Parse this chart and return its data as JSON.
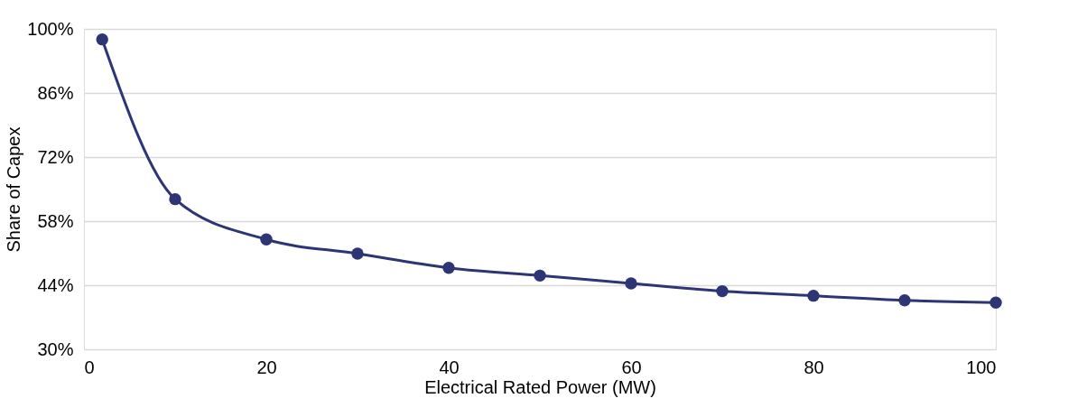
{
  "chart_data": {
    "type": "line",
    "xlabel": "Electrical Rated Power (MW)",
    "ylabel": "Share of Capex",
    "x": [
      2,
      10,
      20,
      30,
      40,
      50,
      60,
      70,
      80,
      90,
      100
    ],
    "series": [
      {
        "color": "#2e3575",
        "values": [
          97.7,
          62.8,
          54.0,
          50.9,
          47.8,
          46.1,
          44.4,
          42.7,
          41.7,
          40.7,
          40.2
        ]
      }
    ],
    "xlim": [
      0,
      100
    ],
    "xticks": [
      0,
      20,
      40,
      60,
      80,
      100
    ],
    "ylim": [
      30,
      100
    ],
    "yticks": [
      {
        "value": 30,
        "label": "30%"
      },
      {
        "value": 44,
        "label": "44%"
      },
      {
        "value": 58,
        "label": "58%"
      },
      {
        "value": 72,
        "label": "72%"
      },
      {
        "value": 86,
        "label": "86%"
      },
      {
        "value": 100,
        "label": "100%"
      }
    ],
    "grid": "y",
    "marker": "circle",
    "line_style": "solid"
  }
}
